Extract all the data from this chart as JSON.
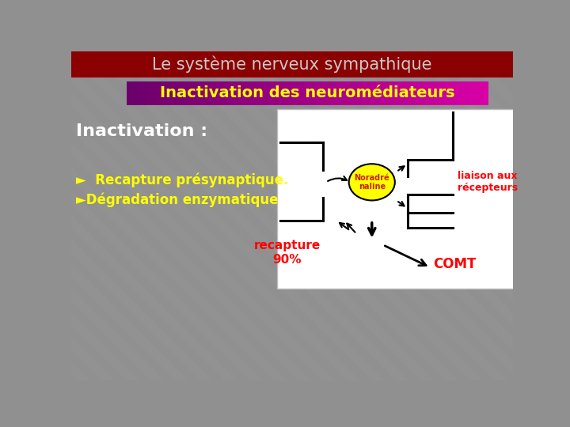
{
  "title": "Le système nerveux sympathique",
  "title_bg": "#8B0000",
  "title_color": "#C8C8C8",
  "subtitle": "Inactivation des neuromédiateurs",
  "subtitle_bg_left": "#6B006B",
  "subtitle_bg_right": "#CC00AA",
  "subtitle_color": "#FFFF00",
  "bg_color": "#909090",
  "inactivation_label": "Inactivation :",
  "inactivation_color": "#FFFFFF",
  "bullet1": "  Recapture présynaptique.",
  "bullet2": "Dégradation enzymatique",
  "bullet_color": "#FFFF00",
  "diagram_bg": "#FFFFFF",
  "noradrenaline_label": "Noradré\nnaline",
  "noradrenaline_circle_color": "#FFFF00",
  "recapture_label": "recapture\n90%",
  "comt_label": "COMT",
  "liaison_label": "liaison aux\nrécepteurs",
  "diagram_text_color": "#FF0000"
}
